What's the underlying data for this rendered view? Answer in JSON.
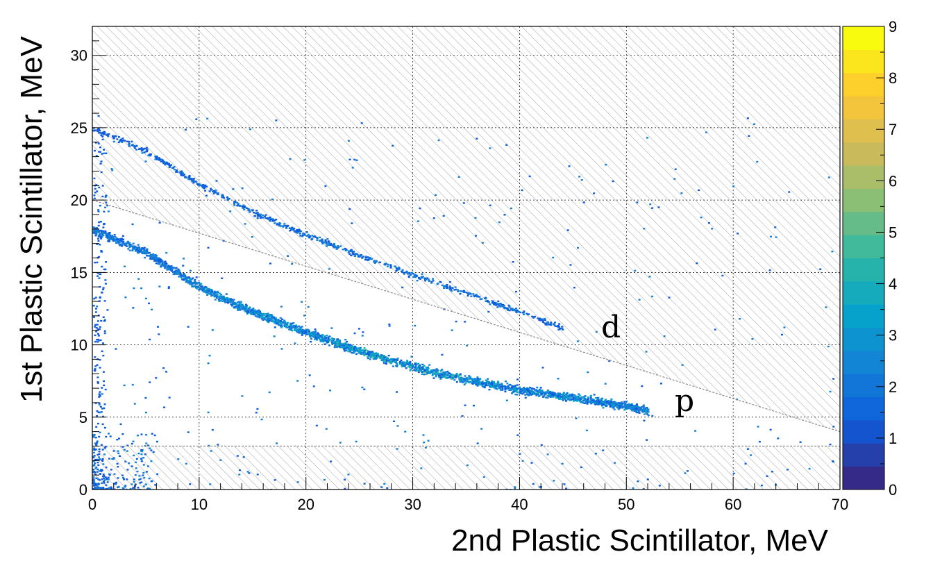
{
  "chart_data": {
    "type": "heatmap",
    "title": "",
    "xlabel": "2nd Plastic Scintillator, MeV",
    "ylabel": "1st Plastic Scintillator, MeV",
    "xlim": [
      0,
      70
    ],
    "ylim": [
      0,
      32
    ],
    "x_ticks": [
      "0",
      "10",
      "20",
      "30",
      "40",
      "50",
      "60",
      "70"
    ],
    "y_ticks": [
      "0",
      "5",
      "10",
      "15",
      "20",
      "25",
      "30"
    ],
    "grid": true,
    "colorbar": {
      "range": [
        0,
        9
      ],
      "ticks": [
        "0",
        "1",
        "2",
        "3",
        "4",
        "5",
        "6",
        "7",
        "8",
        "9"
      ],
      "palette": "kBird",
      "colors": [
        "#352a87",
        "#0f5cdd",
        "#1481d6",
        "#06a4ca",
        "#2eb7a4",
        "#87bf77",
        "#d1bb59",
        "#fec832",
        "#f9fb0e"
      ]
    },
    "bands": [
      {
        "label": "d",
        "points": [
          [
            0,
            25.0
          ],
          [
            5,
            23.4
          ],
          [
            10,
            21.1
          ],
          [
            15,
            19.2
          ],
          [
            20,
            17.6
          ],
          [
            25,
            16.2
          ],
          [
            30,
            14.9
          ],
          [
            35,
            13.6
          ],
          [
            40,
            12.3
          ],
          [
            44,
            11.2
          ]
        ]
      },
      {
        "label": "p",
        "points": [
          [
            0,
            18.0
          ],
          [
            5,
            16.4
          ],
          [
            10,
            14.0
          ],
          [
            15,
            12.3
          ],
          [
            20,
            10.9
          ],
          [
            25,
            9.6
          ],
          [
            30,
            8.5
          ],
          [
            35,
            7.6
          ],
          [
            40,
            6.9
          ],
          [
            45,
            6.4
          ],
          [
            50,
            5.8
          ],
          [
            52,
            5.5
          ]
        ]
      }
    ],
    "excluded_regions": [
      {
        "name": "upper cut",
        "line": [
          [
            0,
            20.0
          ],
          [
            70,
            4.0
          ]
        ]
      },
      {
        "name": "lower cut",
        "y_max": 3.0
      }
    ]
  }
}
